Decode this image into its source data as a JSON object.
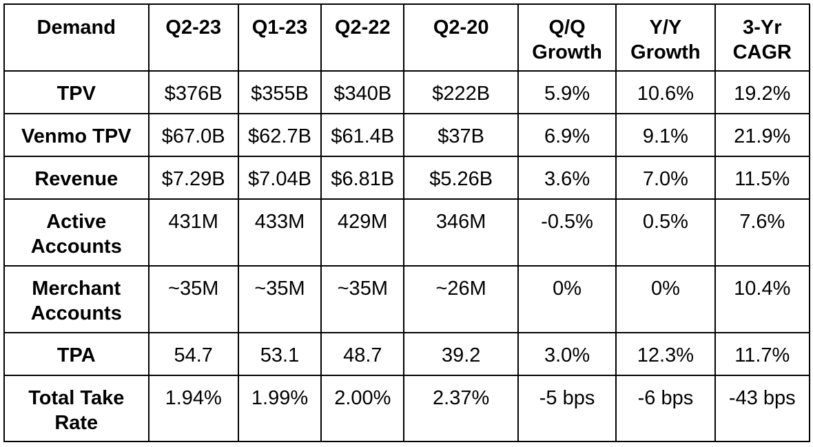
{
  "table": {
    "headers": [
      "Demand",
      "Q2-23",
      "Q1-23",
      "Q2-22",
      "Q2-20",
      "Q/Q Growth",
      "Y/Y Growth",
      "3-Yr CAGR"
    ],
    "rows": [
      {
        "label": "TPV",
        "values": [
          "$376B",
          "$355B",
          "$340B",
          "$222B",
          "5.9%",
          "10.6%",
          "19.2%"
        ]
      },
      {
        "label": "Venmo TPV",
        "values": [
          "$67.0B",
          "$62.7B",
          "$61.4B",
          "$37B",
          "6.9%",
          "9.1%",
          "21.9%"
        ]
      },
      {
        "label": "Revenue",
        "values": [
          "$7.29B",
          "$7.04B",
          "$6.81B",
          "$5.26B",
          "3.6%",
          "7.0%",
          "11.5%"
        ]
      },
      {
        "label": "Active Accounts",
        "values": [
          "431M",
          "433M",
          "429M",
          "346M",
          "-0.5%",
          "0.5%",
          "7.6%"
        ]
      },
      {
        "label": "Merchant Accounts",
        "values": [
          "~35M",
          "~35M",
          "~35M",
          "~26M",
          "0%",
          "0%",
          "10.4%"
        ]
      },
      {
        "label": "TPA",
        "values": [
          "54.7",
          "53.1",
          "48.7",
          "39.2",
          "3.0%",
          "12.3%",
          "11.7%"
        ]
      },
      {
        "label": "Total Take Rate",
        "values": [
          "1.94%",
          "1.99%",
          "2.00%",
          "2.37%",
          "-5 bps",
          "-6 bps",
          "-43 bps"
        ]
      }
    ]
  }
}
